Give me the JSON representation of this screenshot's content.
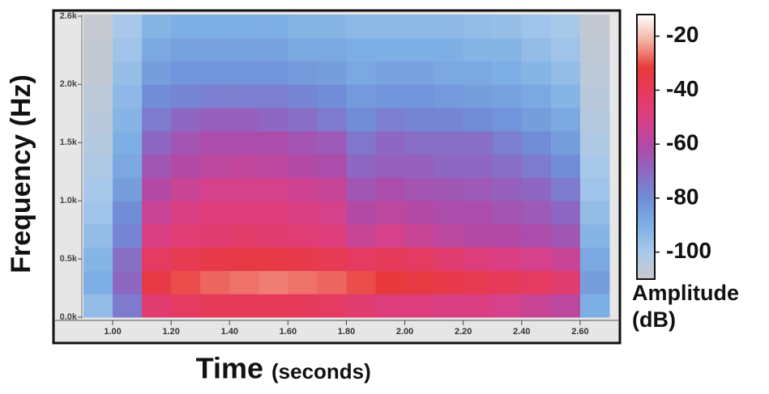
{
  "chart_data": {
    "type": "heatmap",
    "y_label": "Frequency (Hz)",
    "x_label": "Time",
    "x_unit": "(seconds)",
    "colorbar_label": "Amplitude (dB)",
    "xlim": [
      0.9,
      2.7
    ],
    "xticks": [
      {
        "value": 1.0,
        "label": "1.00"
      },
      {
        "value": 1.2,
        "label": "1.20"
      },
      {
        "value": 1.4,
        "label": "1.40"
      },
      {
        "value": 1.6,
        "label": "1.60"
      },
      {
        "value": 1.8,
        "label": "1.80"
      },
      {
        "value": 2.0,
        "label": "2.00"
      },
      {
        "value": 2.2,
        "label": "2.20"
      },
      {
        "value": 2.4,
        "label": "2.40"
      },
      {
        "value": 2.6,
        "label": "2.60"
      }
    ],
    "ylim": [
      0,
      2600
    ],
    "yticks": [
      {
        "value": 0,
        "label": "0.0k"
      },
      {
        "value": 500,
        "label": "0.5k"
      },
      {
        "value": 1000,
        "label": "1.0k"
      },
      {
        "value": 1500,
        "label": "1.5k"
      },
      {
        "value": 2000,
        "label": "2.0k"
      },
      {
        "value": 2600,
        "label": "2.6k"
      }
    ],
    "x_bins": [
      0.9,
      1.0,
      1.1,
      1.2,
      1.3,
      1.4,
      1.5,
      1.6,
      1.7,
      1.8,
      1.9,
      2.0,
      2.1,
      2.2,
      2.3,
      2.4,
      2.5,
      2.6,
      2.7
    ],
    "y_bins": [
      0,
      200,
      400,
      600,
      800,
      1000,
      1200,
      1400,
      1600,
      1800,
      2000,
      2200,
      2400,
      2600
    ],
    "z": [
      [
        -95,
        -75,
        -45,
        -42,
        -40,
        -40,
        -40,
        -40,
        -42,
        -45,
        -48,
        -48,
        -50,
        -50,
        -52,
        -55,
        -58,
        -90
      ],
      [
        -90,
        -70,
        -35,
        -30,
        -28,
        -27,
        -26,
        -27,
        -28,
        -30,
        -32,
        -34,
        -36,
        -38,
        -40,
        -42,
        -45,
        -85
      ],
      [
        -92,
        -72,
        -42,
        -38,
        -36,
        -35,
        -35,
        -36,
        -38,
        -42,
        -40,
        -42,
        -45,
        -48,
        -50,
        -52,
        -55,
        -88
      ],
      [
        -95,
        -78,
        -50,
        -46,
        -45,
        -44,
        -45,
        -46,
        -48,
        -55,
        -52,
        -55,
        -58,
        -60,
        -60,
        -62,
        -65,
        -92
      ],
      [
        -98,
        -80,
        -55,
        -50,
        -48,
        -48,
        -48,
        -50,
        -52,
        -60,
        -58,
        -60,
        -62,
        -62,
        -64,
        -66,
        -70,
        -95
      ],
      [
        -100,
        -85,
        -60,
        -55,
        -52,
        -52,
        -52,
        -54,
        -56,
        -65,
        -62,
        -64,
        -65,
        -66,
        -68,
        -70,
        -75,
        -98
      ],
      [
        -102,
        -88,
        -65,
        -60,
        -58,
        -57,
        -58,
        -60,
        -62,
        -70,
        -68,
        -68,
        -70,
        -70,
        -72,
        -75,
        -80,
        -100
      ],
      [
        -104,
        -90,
        -70,
        -64,
        -62,
        -62,
        -62,
        -64,
        -66,
        -74,
        -70,
        -72,
        -72,
        -72,
        -76,
        -80,
        -85,
        -102
      ],
      [
        -105,
        -92,
        -75,
        -70,
        -68,
        -68,
        -70,
        -72,
        -75,
        -80,
        -76,
        -78,
        -78,
        -80,
        -82,
        -85,
        -88,
        -104
      ],
      [
        -106,
        -94,
        -80,
        -78,
        -76,
        -76,
        -76,
        -78,
        -80,
        -84,
        -82,
        -82,
        -84,
        -85,
        -86,
        -88,
        -92,
        -105
      ],
      [
        -108,
        -96,
        -85,
        -82,
        -82,
        -82,
        -82,
        -84,
        -85,
        -88,
        -86,
        -86,
        -88,
        -88,
        -90,
        -92,
        -95,
        -106
      ],
      [
        -108,
        -98,
        -88,
        -86,
        -86,
        -86,
        -86,
        -88,
        -88,
        -90,
        -90,
        -90,
        -90,
        -92,
        -92,
        -95,
        -98,
        -107
      ],
      [
        -109,
        -100,
        -92,
        -90,
        -90,
        -90,
        -90,
        -92,
        -92,
        -94,
        -94,
        -94,
        -94,
        -95,
        -96,
        -98,
        -100,
        -108
      ]
    ],
    "zlim": [
      -110,
      -12
    ],
    "zticks": [
      -20,
      -40,
      -60,
      -80,
      -100
    ],
    "colormap": [
      "#c9c9cc",
      "#a9c9ea",
      "#7fb0e4",
      "#6f8fd8",
      "#8a6ac4",
      "#b04aa8",
      "#d84088",
      "#e63a60",
      "#e83a3a",
      "#f4b0a0",
      "#ffffff"
    ]
  }
}
